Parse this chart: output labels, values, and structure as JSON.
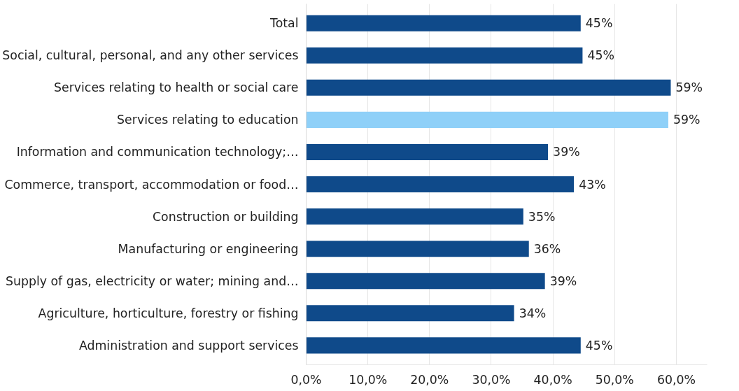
{
  "chart_data": {
    "type": "bar",
    "orientation": "horizontal",
    "categories": [
      "Total",
      "Social, cultural, personal, and any other services",
      "Services relating to health or social care",
      "Services relating to education",
      "Information and communication technology;…",
      "Commerce, transport, accommodation or food…",
      "Construction or building",
      "Manufacturing or engineering",
      "Supply of gas, electricity or water; mining and…",
      "Agriculture, horticulture, forestry or fishing",
      "Administration and support services"
    ],
    "values": [
      44.5,
      44.8,
      59.1,
      58.7,
      39.2,
      43.4,
      35.2,
      36.1,
      38.7,
      33.7,
      44.5
    ],
    "value_labels": [
      "45%",
      "45%",
      "59%",
      "59%",
      "39%",
      "43%",
      "35%",
      "36%",
      "39%",
      "34%",
      "45%"
    ],
    "colors": [
      "#0f4a8a",
      "#0f4a8a",
      "#0f4a8a",
      "#8fd0f8",
      "#0f4a8a",
      "#0f4a8a",
      "#0f4a8a",
      "#0f4a8a",
      "#0f4a8a",
      "#0f4a8a",
      "#0f4a8a"
    ],
    "xlim": [
      0,
      65
    ],
    "xticks": [
      {
        "value": 0,
        "label": "0,0%"
      },
      {
        "value": 10,
        "label": "10,0%"
      },
      {
        "value": 20,
        "label": "20,0%"
      },
      {
        "value": 30,
        "label": "30,0%"
      },
      {
        "value": 40,
        "label": "40,0%"
      },
      {
        "value": 50,
        "label": "50,0%"
      },
      {
        "value": 60,
        "label": "60,0%"
      }
    ],
    "grid": "x"
  }
}
